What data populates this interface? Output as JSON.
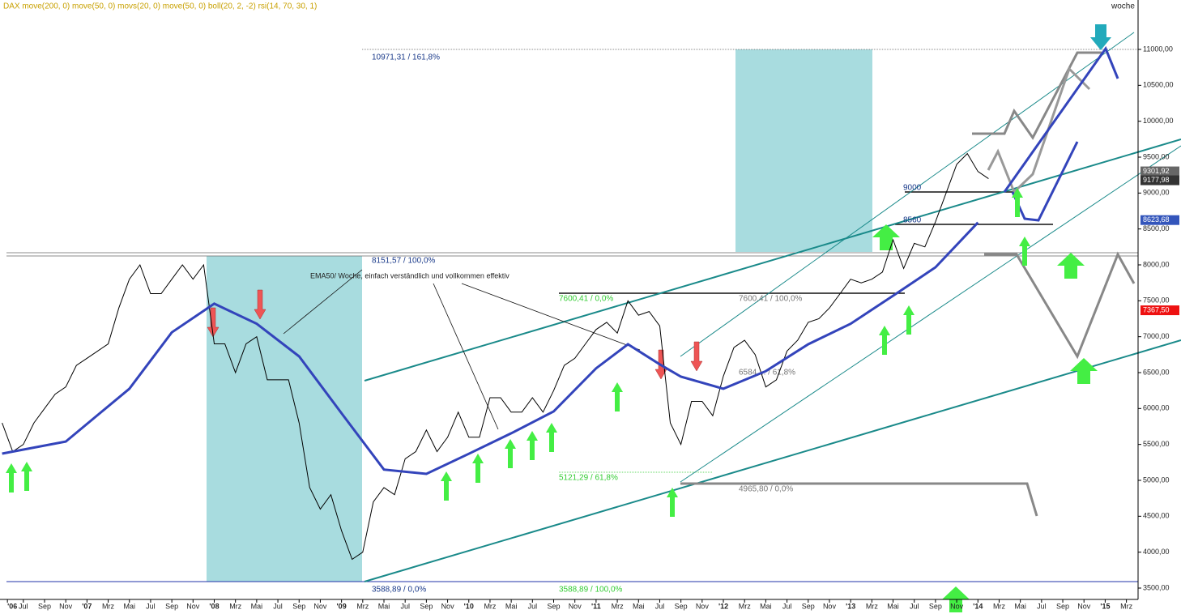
{
  "chart_data": {
    "type": "line",
    "title": "DAX move(200, 0) move(50, 0) movs(20, 0) move(50, 0) boll(20, 2, -2) rsi(14, 70, 30, 1)",
    "period": "woche",
    "xlim": [
      3.8,
      111.1
    ],
    "ylim": [
      3342,
      11688
    ],
    "xticks": [
      {
        "value": 4.5,
        "label": "'06"
      },
      {
        "value": 6,
        "label": "Jul"
      },
      {
        "value": 8,
        "label": "Sep"
      },
      {
        "value": 10,
        "label": "Nov"
      },
      {
        "value": 12,
        "label": "'07"
      },
      {
        "value": 14,
        "label": "Mrz"
      },
      {
        "value": 16,
        "label": "Mai"
      },
      {
        "value": 18,
        "label": "Jul"
      },
      {
        "value": 20,
        "label": "Sep"
      },
      {
        "value": 22,
        "label": "Nov"
      },
      {
        "value": 24,
        "label": "'08"
      },
      {
        "value": 26,
        "label": "Mrz"
      },
      {
        "value": 28,
        "label": "Mai"
      },
      {
        "value": 30,
        "label": "Jul"
      },
      {
        "value": 32,
        "label": "Sep"
      },
      {
        "value": 34,
        "label": "Nov"
      },
      {
        "value": 36,
        "label": "'09"
      },
      {
        "value": 38,
        "label": "Mrz"
      },
      {
        "value": 40,
        "label": "Mai"
      },
      {
        "value": 42,
        "label": "Jul"
      },
      {
        "value": 44,
        "label": "Sep"
      },
      {
        "value": 46,
        "label": "Nov"
      },
      {
        "value": 48,
        "label": "'10"
      },
      {
        "value": 50,
        "label": "Mrz"
      },
      {
        "value": 52,
        "label": "Mai"
      },
      {
        "value": 54,
        "label": "Jul"
      },
      {
        "value": 56,
        "label": "Sep"
      },
      {
        "value": 58,
        "label": "Nov"
      },
      {
        "value": 60,
        "label": "'11"
      },
      {
        "value": 62,
        "label": "Mrz"
      },
      {
        "value": 64,
        "label": "Mai"
      },
      {
        "value": 66,
        "label": "Jul"
      },
      {
        "value": 68,
        "label": "Sep"
      },
      {
        "value": 70,
        "label": "Nov"
      },
      {
        "value": 72,
        "label": "'12"
      },
      {
        "value": 74,
        "label": "Mrz"
      },
      {
        "value": 76,
        "label": "Mai"
      },
      {
        "value": 78,
        "label": "Jul"
      },
      {
        "value": 80,
        "label": "Sep"
      },
      {
        "value": 82,
        "label": "Nov"
      },
      {
        "value": 84,
        "label": "'13"
      },
      {
        "value": 86,
        "label": "Mrz"
      },
      {
        "value": 88,
        "label": "Mai"
      },
      {
        "value": 90,
        "label": "Jul"
      },
      {
        "value": 92,
        "label": "Sep"
      },
      {
        "value": 94,
        "label": "Nov"
      },
      {
        "value": 96,
        "label": "'14"
      },
      {
        "value": 98,
        "label": "Mrz"
      },
      {
        "value": 100,
        "label": "Mai"
      },
      {
        "value": 102,
        "label": "Jul"
      },
      {
        "value": 104,
        "label": "Sep"
      },
      {
        "value": 106,
        "label": "Nov"
      },
      {
        "value": 108,
        "label": "'15"
      },
      {
        "value": 110,
        "label": "Mrz"
      }
    ],
    "yticks": [
      {
        "value": 3500,
        "label": "3500,00"
      },
      {
        "value": 4000,
        "label": "4000,00"
      },
      {
        "value": 4500,
        "label": "4500,00"
      },
      {
        "value": 5000,
        "label": "5000,00"
      },
      {
        "value": 5500,
        "label": "5500,00"
      },
      {
        "value": 6000,
        "label": "6000,00"
      },
      {
        "value": 6500,
        "label": "6500,00"
      },
      {
        "value": 7000,
        "label": "7000,00"
      },
      {
        "value": 7500,
        "label": "7500,00"
      },
      {
        "value": 8000,
        "label": "8000,00"
      },
      {
        "value": 8500,
        "label": "8500,00"
      },
      {
        "value": 9000,
        "label": "9000,00"
      },
      {
        "value": 9500,
        "label": "9500,00"
      },
      {
        "value": 10000,
        "label": "10000,00"
      },
      {
        "value": 10500,
        "label": "10500,00"
      },
      {
        "value": 11000,
        "label": "11000,00"
      }
    ],
    "series": [
      {
        "color": "#000000",
        "x": [
          4,
          5,
          6,
          7,
          8,
          9,
          10,
          11,
          12,
          13,
          14,
          15,
          16,
          17,
          18,
          19,
          20,
          21,
          22,
          23,
          24,
          25,
          26,
          27,
          28,
          29,
          30,
          31,
          32,
          33,
          34,
          35,
          36,
          37,
          38,
          39,
          40,
          41,
          42,
          43,
          44,
          45,
          46,
          47,
          48,
          49,
          50,
          51,
          52,
          53,
          54,
          55,
          56,
          57,
          58,
          59,
          60,
          61,
          62,
          63,
          64,
          65,
          66,
          67,
          68,
          69,
          70,
          71,
          72,
          73,
          74,
          75,
          76,
          77,
          78,
          79,
          80,
          81,
          82,
          83,
          84,
          85,
          86,
          87,
          88,
          89,
          90,
          91,
          92,
          93,
          94,
          95,
          96,
          97
        ],
        "values": [
          5800,
          5400,
          5500,
          5800,
          6000,
          6200,
          6300,
          6600,
          6700,
          6800,
          6900,
          7400,
          7800,
          8000,
          7600,
          7600,
          7800,
          8000,
          7800,
          8000,
          6900,
          6900,
          6500,
          6900,
          7000,
          6400,
          6400,
          6400,
          5800,
          4900,
          4600,
          4800,
          4300,
          3900,
          4000,
          4700,
          4900,
          4800,
          5300,
          5400,
          5700,
          5400,
          5600,
          5950,
          5600,
          5600,
          6150,
          6150,
          5950,
          5950,
          6150,
          5950,
          6250,
          6600,
          6700,
          6900,
          7100,
          7200,
          7050,
          7500,
          7300,
          7350,
          7150,
          5800,
          5500,
          6100,
          6100,
          5900,
          6450,
          6850,
          6950,
          6750,
          6300,
          6400,
          6800,
          6950,
          7200,
          7250,
          7400,
          7600,
          7800,
          7750,
          7800,
          7900,
          8350,
          7950,
          8300,
          8250,
          8600,
          9000,
          9400,
          9550,
          9300,
          9200
        ]
      },
      {
        "color": "#3344bb",
        "x": [
          4,
          10,
          16,
          20,
          24,
          28,
          32,
          36,
          40,
          44,
          48,
          52,
          56,
          60,
          63,
          66,
          68,
          72,
          76,
          80,
          84,
          88,
          92,
          96
        ],
        "values": [
          5372,
          5540,
          6275,
          7060,
          7460,
          7180,
          6725,
          5935,
          5150,
          5090,
          5370,
          5655,
          5960,
          6560,
          6895,
          6615,
          6444,
          6275,
          6520,
          6895,
          7180,
          7570,
          7966,
          8590
        ]
      }
    ],
    "price_tags": [
      {
        "value": 9301.92,
        "label": "9301,92",
        "color": "#666666"
      },
      {
        "value": 9177.98,
        "label": "9177,98",
        "color": "#333333"
      },
      {
        "value": 8623.68,
        "label": "8623,68",
        "color": "#3355bb"
      },
      {
        "value": 7367.5,
        "label": "7367,50",
        "color": "#ee1111"
      }
    ],
    "annotations": {
      "fib_top": "10971,31 / 161,8%",
      "fib_100": "8151,57 / 100,0%",
      "fib_low": "3588,89 / 0,0%",
      "fib2_0": "7600,41 / 0,0%",
      "fib2_618": "5121,29 / 61,8%",
      "fib2_100": "3588,89 / 100,0%",
      "fib3_100": "7600,41 / 100,0%",
      "fib3_mid": "6584,... / 61,8%",
      "fib3_0": "4965,80 / 0,0%",
      "level_9000": "9000",
      "level_8560": "8560",
      "ema_note": "EMA50/ Woche, einfach verständlich und vollkommen effektiv"
    }
  }
}
